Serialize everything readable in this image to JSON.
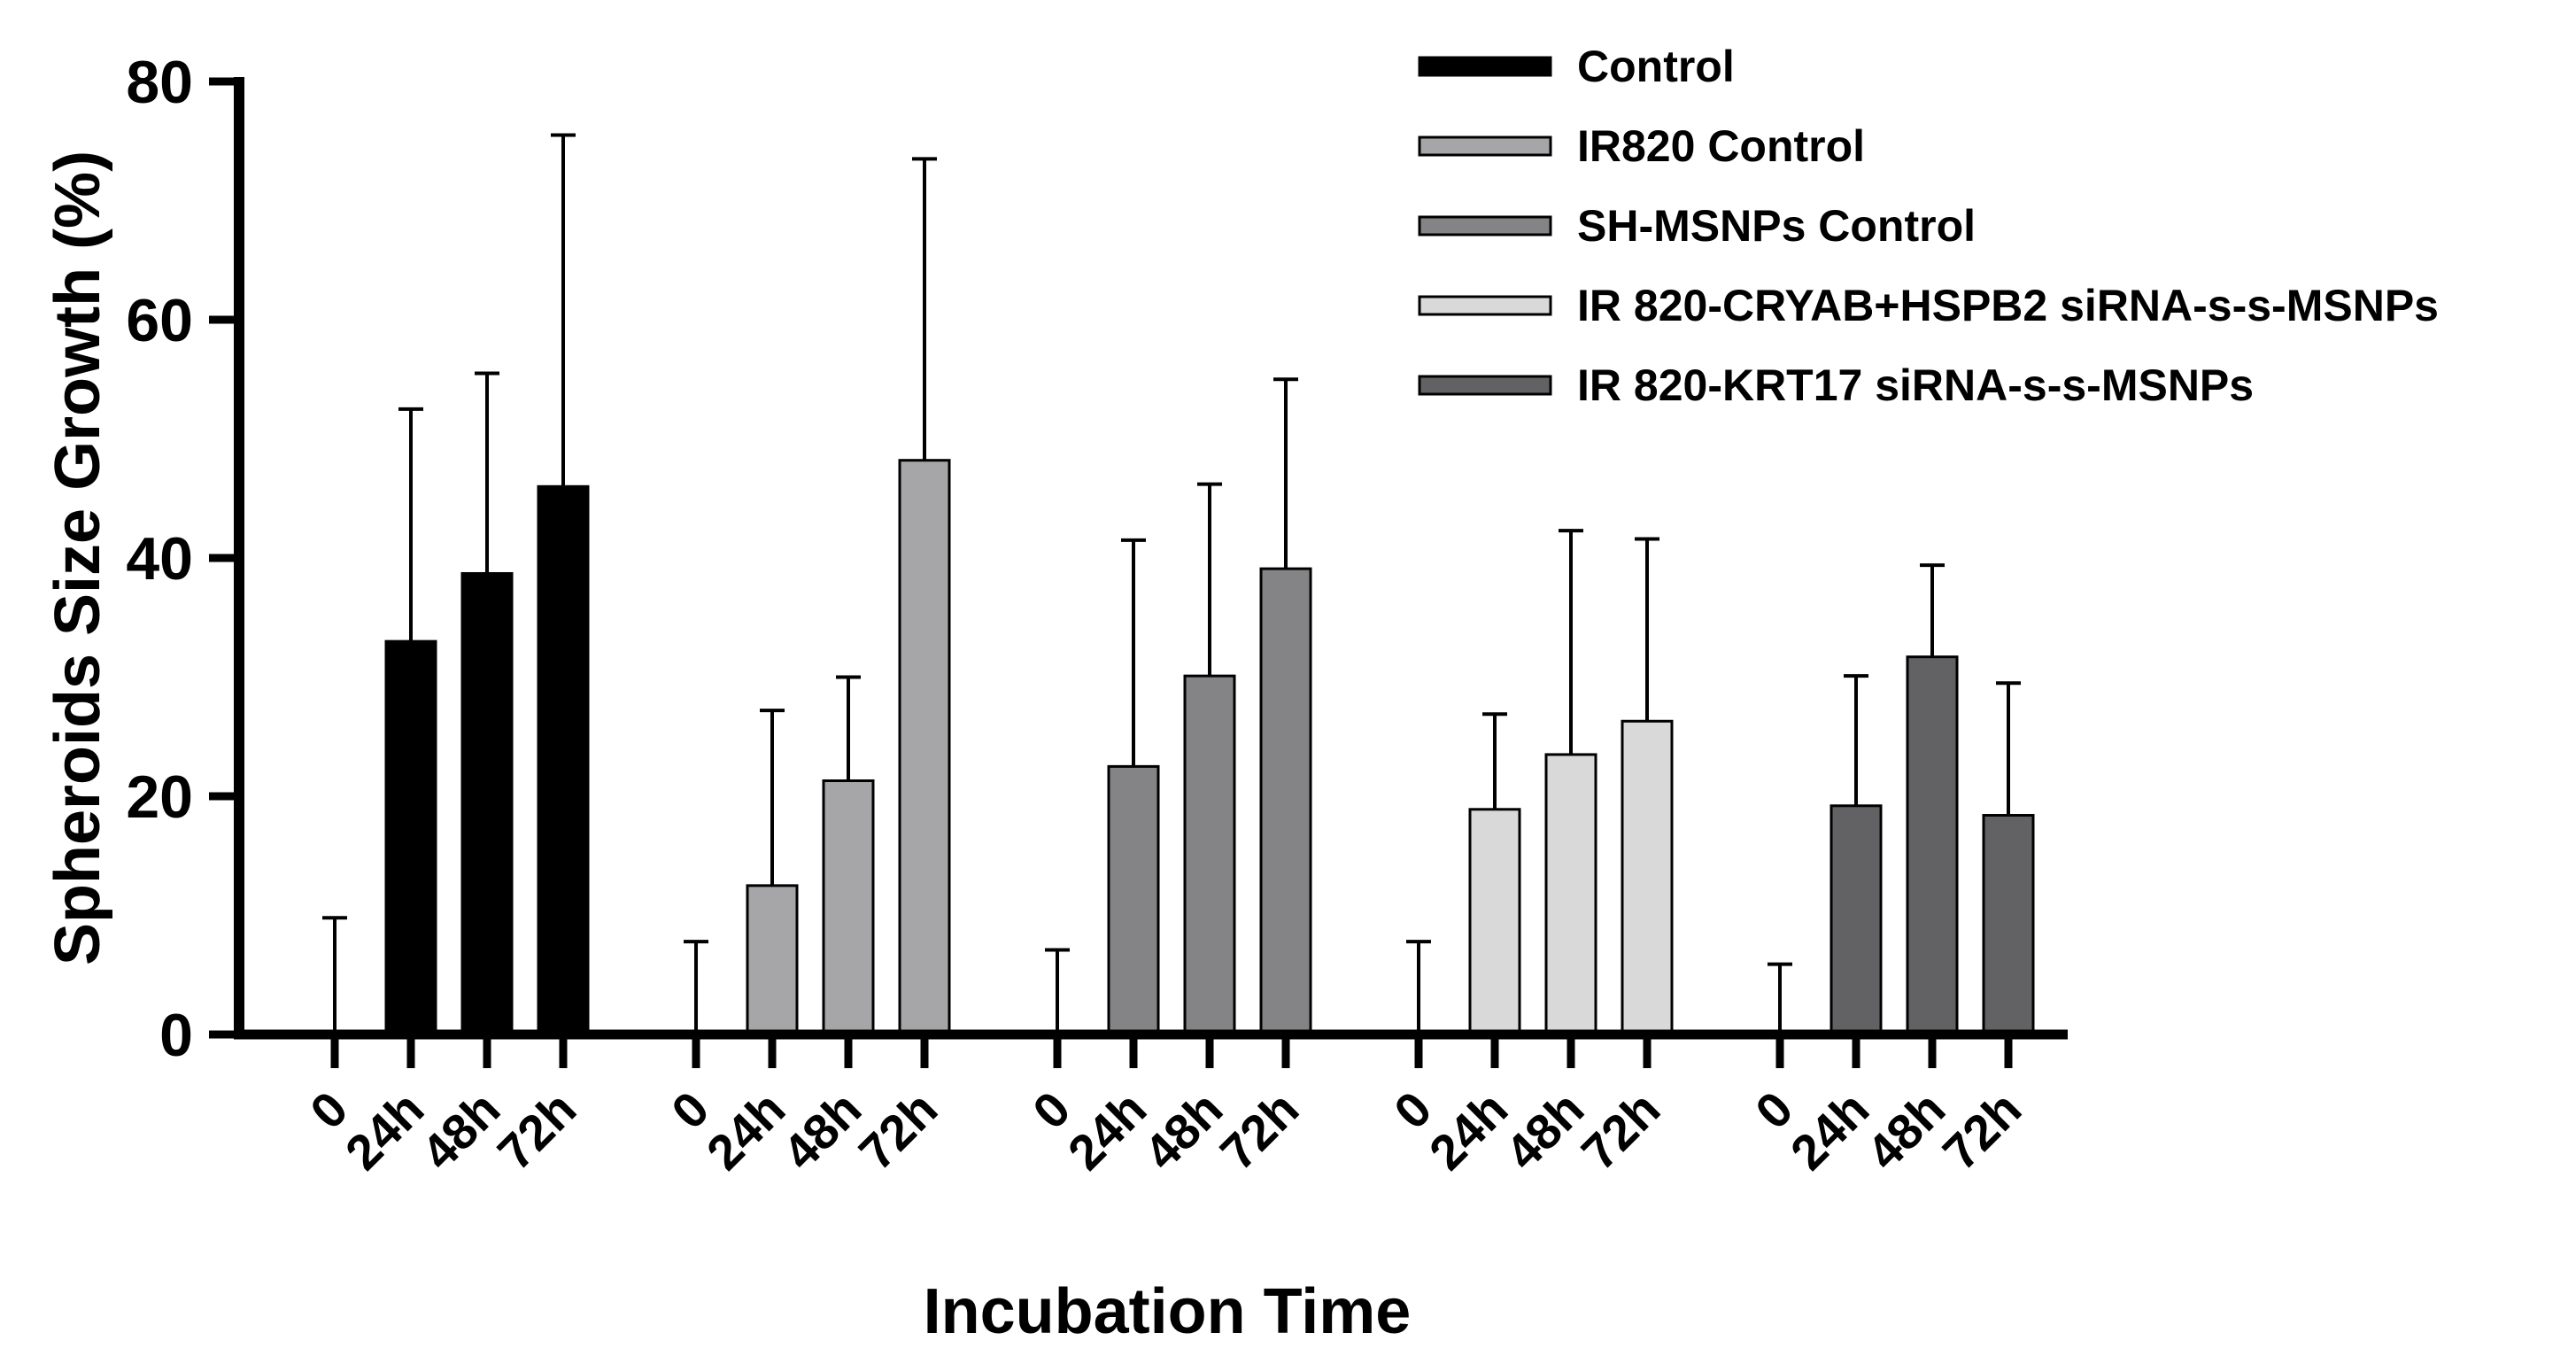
{
  "chart_data": {
    "type": "bar",
    "xlabel": "Incubation Time",
    "ylabel": "Spheroids Size Growth (%)",
    "ylim": [
      0,
      80
    ],
    "yticks": [
      0,
      20,
      40,
      60,
      80
    ],
    "categories": [
      "0",
      "24h",
      "48h",
      "72h"
    ],
    "legend_position": "top-right",
    "grid": false,
    "series": [
      {
        "name": "Control",
        "color": "#000000",
        "values": [
          0,
          33,
          38.7,
          46
        ],
        "errors": [
          9.8,
          19.5,
          16.8,
          29.5
        ]
      },
      {
        "name": "IR820 Control",
        "color": "#a6a6a8",
        "values": [
          0,
          12.5,
          21.3,
          48.2
        ],
        "errors": [
          7.8,
          14.7,
          8.7,
          25.3
        ]
      },
      {
        "name": "SH-MSNPs Control",
        "color": "#848486",
        "values": [
          0,
          22.5,
          30.1,
          39.1
        ],
        "errors": [
          7.1,
          19,
          16.1,
          15.9
        ]
      },
      {
        "name": "IR 820-CRYAB+HSPB2 siRNA-s-s-MSNPs",
        "color": "#d9d9d9",
        "values": [
          0,
          18.9,
          23.5,
          26.3
        ],
        "errors": [
          7.8,
          8,
          18.8,
          15.3
        ]
      },
      {
        "name": "IR 820-KRT17 siRNA-s-s-MSNPs",
        "color": "#626264",
        "values": [
          0,
          19.2,
          31.7,
          18.4
        ],
        "errors": [
          5.9,
          10.9,
          7.7,
          11.1
        ]
      }
    ]
  }
}
